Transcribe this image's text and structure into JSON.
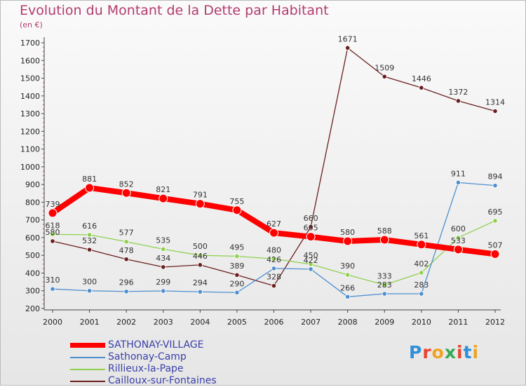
{
  "title": "Evolution du Montant de la Dette par Habitant",
  "subtitle": "(en €)",
  "logo": {
    "text": "Proxiti",
    "colors": [
      "#2f8fd9",
      "#e8442f",
      "#f0a320",
      "#34a853",
      "#e8442f",
      "#2f8fd9",
      "#f0a320"
    ]
  },
  "chart_data": {
    "type": "line",
    "x": [
      "2000",
      "2001",
      "2002",
      "2003",
      "2004",
      "2005",
      "2006",
      "2007",
      "2008",
      "2009",
      "2010",
      "2011",
      "2012"
    ],
    "ylim": [
      200,
      1700
    ],
    "yticks": [
      200,
      300,
      400,
      500,
      600,
      700,
      800,
      900,
      1000,
      1100,
      1200,
      1300,
      1400,
      1500,
      1600,
      1700
    ],
    "grid": false,
    "legend_position": "bottom-left",
    "series": [
      {
        "name": "SATHONAY-VILLAGE",
        "color": "#ff0000",
        "values": [
          739,
          881,
          852,
          821,
          791,
          755,
          627,
          605,
          580,
          588,
          561,
          533,
          507
        ]
      },
      {
        "name": "Sathonay-Camp",
        "color": "#4f8fd0",
        "values": [
          310,
          300,
          296,
          299,
          294,
          290,
          426,
          422,
          266,
          283,
          283,
          911,
          894
        ]
      },
      {
        "name": "Rillieux-la-Pape",
        "color": "#8fd14f",
        "values": [
          618,
          616,
          577,
          535,
          500,
          495,
          480,
          450,
          390,
          333,
          402,
          600,
          695
        ]
      },
      {
        "name": "Cailloux-sur-Fontaines",
        "color": "#6b1f1f",
        "values": [
          580,
          532,
          478,
          434,
          446,
          389,
          328,
          660,
          1671,
          1509,
          1446,
          1372,
          1314
        ]
      }
    ]
  }
}
